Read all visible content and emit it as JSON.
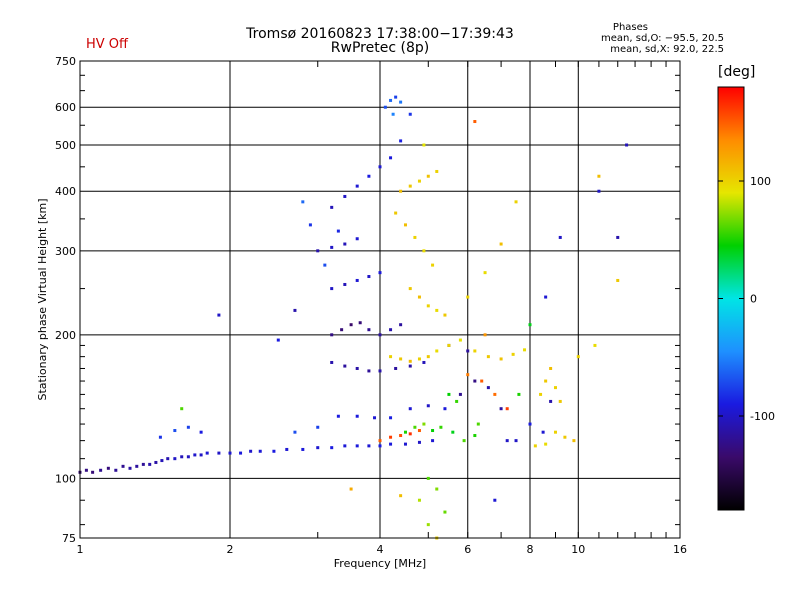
{
  "header": {
    "title_line1": "Tromsø 20160823 17:38:00−17:39:43",
    "title_line2": "RwPretec (8p)",
    "status": "HV Off",
    "status_color": "#cc0000"
  },
  "stats": {
    "heading": "Phases",
    "o_line": "mean, sd,O: −95.5, 20.5",
    "x_line": "mean, sd,X:  92.0, 22.5"
  },
  "chart_data": {
    "type": "scatter",
    "xlabel": "Frequency [MHz]",
    "ylabel": "Stationary phase Virtual Height [km]",
    "x_scale": "log",
    "y_scale": "log",
    "xlim": [
      1,
      16
    ],
    "ylim": [
      75,
      750
    ],
    "xticks": [
      1,
      2,
      4,
      6,
      8,
      10,
      16
    ],
    "yticks": [
      75,
      100,
      200,
      300,
      400,
      500,
      600,
      750
    ],
    "grid": true,
    "colorbar": {
      "label": "[deg]",
      "ticks": [
        100,
        0,
        -100
      ],
      "range": [
        -180,
        180
      ],
      "colormap": [
        "#000000",
        "#3a0a6a",
        "#1a1ae0",
        "#1e90ff",
        "#00e5e5",
        "#00d000",
        "#e6e600",
        "#ff8c00",
        "#ff0000"
      ]
    },
    "series": [
      {
        "mode": "O",
        "points": [
          [
            1.0,
            103,
            -130
          ],
          [
            1.03,
            104,
            -125
          ],
          [
            1.06,
            103,
            -130
          ],
          [
            1.1,
            104,
            -120
          ],
          [
            1.14,
            105,
            -128
          ],
          [
            1.18,
            104,
            -118
          ],
          [
            1.22,
            106,
            -120
          ],
          [
            1.26,
            105,
            -112
          ],
          [
            1.3,
            106,
            -115
          ],
          [
            1.34,
            107,
            -118
          ],
          [
            1.38,
            107,
            -110
          ],
          [
            1.42,
            108,
            -112
          ],
          [
            1.46,
            109,
            -105
          ],
          [
            1.5,
            110,
            -108
          ],
          [
            1.55,
            110,
            -100
          ],
          [
            1.6,
            111,
            -105
          ],
          [
            1.65,
            111,
            -102
          ],
          [
            1.7,
            112,
            -98
          ],
          [
            1.75,
            112,
            -100
          ],
          [
            1.8,
            113,
            -95
          ],
          [
            1.9,
            113,
            -100
          ],
          [
            2.0,
            113,
            -96
          ],
          [
            2.1,
            113,
            -92
          ],
          [
            2.2,
            114,
            -98
          ],
          [
            2.3,
            114,
            -94
          ],
          [
            2.45,
            114,
            -90
          ],
          [
            2.6,
            115,
            -95
          ],
          [
            2.8,
            115,
            -92
          ],
          [
            3.0,
            116,
            -96
          ],
          [
            3.2,
            116,
            -90
          ],
          [
            3.4,
            117,
            -94
          ],
          [
            3.6,
            117,
            -92
          ],
          [
            3.8,
            117,
            -95
          ],
          [
            4.0,
            117,
            -90
          ],
          [
            4.2,
            118,
            -92
          ],
          [
            4.5,
            118,
            -96
          ],
          [
            4.8,
            119,
            -100
          ],
          [
            5.1,
            120,
            -95
          ],
          [
            1.45,
            122,
            -80
          ],
          [
            1.55,
            126,
            -70
          ],
          [
            1.65,
            128,
            -75
          ],
          [
            1.75,
            125,
            -90
          ],
          [
            2.7,
            125,
            -70
          ],
          [
            3.0,
            128,
            -75
          ],
          [
            3.3,
            135,
            -90
          ],
          [
            3.6,
            135,
            -92
          ],
          [
            3.9,
            134,
            -95
          ],
          [
            4.2,
            134,
            -88
          ],
          [
            4.6,
            140,
            -95
          ],
          [
            5.0,
            142,
            -100
          ],
          [
            5.4,
            140,
            -92
          ],
          [
            3.2,
            175,
            -110
          ],
          [
            3.4,
            172,
            -115
          ],
          [
            3.6,
            170,
            -112
          ],
          [
            3.8,
            168,
            -118
          ],
          [
            4.0,
            168,
            -110
          ],
          [
            4.3,
            170,
            -115
          ],
          [
            4.6,
            172,
            -112
          ],
          [
            4.9,
            175,
            -105
          ],
          [
            3.2,
            200,
            -125
          ],
          [
            3.35,
            205,
            -130
          ],
          [
            3.5,
            210,
            -135
          ],
          [
            3.65,
            212,
            -130
          ],
          [
            3.8,
            205,
            -120
          ],
          [
            4.0,
            200,
            -115
          ],
          [
            4.2,
            205,
            -110
          ],
          [
            4.4,
            210,
            -115
          ],
          [
            3.2,
            250,
            -100
          ],
          [
            3.4,
            255,
            -105
          ],
          [
            3.6,
            260,
            -95
          ],
          [
            3.8,
            265,
            -100
          ],
          [
            4.0,
            270,
            -92
          ],
          [
            3.0,
            300,
            -110
          ],
          [
            3.2,
            305,
            -100
          ],
          [
            3.4,
            310,
            -105
          ],
          [
            3.6,
            318,
            -95
          ],
          [
            3.2,
            370,
            -105
          ],
          [
            3.4,
            390,
            -100
          ],
          [
            3.6,
            410,
            -95
          ],
          [
            3.8,
            430,
            -90
          ],
          [
            4.0,
            450,
            -95
          ],
          [
            4.2,
            470,
            -92
          ],
          [
            4.4,
            510,
            -88
          ],
          [
            4.1,
            600,
            -70
          ],
          [
            4.2,
            620,
            -60
          ],
          [
            4.3,
            630,
            -75
          ],
          [
            4.4,
            615,
            -55
          ],
          [
            4.25,
            580,
            -50
          ],
          [
            2.8,
            380,
            -60
          ],
          [
            2.9,
            340,
            -80
          ],
          [
            3.1,
            280,
            -70
          ],
          [
            5.5,
            190,
            -110
          ],
          [
            6.0,
            185,
            -115
          ],
          [
            5.8,
            150,
            -120
          ],
          [
            6.2,
            160,
            -125
          ],
          [
            6.6,
            155,
            -110
          ],
          [
            7.0,
            140,
            -115
          ],
          [
            7.5,
            120,
            -100
          ],
          [
            8.0,
            130,
            -90
          ],
          [
            8.5,
            125,
            -95
          ],
          [
            8.8,
            145,
            -110
          ],
          [
            9.2,
            320,
            -100
          ],
          [
            8.6,
            240,
            -95
          ],
          [
            7.2,
            120,
            -100
          ],
          [
            6.8,
            90,
            -95
          ],
          [
            11.0,
            400,
            -100
          ],
          [
            12.0,
            320,
            -110
          ],
          [
            12.5,
            500,
            -105
          ],
          [
            1.9,
            220,
            -100
          ],
          [
            2.5,
            195,
            -90
          ],
          [
            2.7,
            225,
            -110
          ],
          [
            3.3,
            330,
            -85
          ],
          [
            4.6,
            580,
            -80
          ]
        ]
      },
      {
        "mode": "X",
        "points": [
          [
            4.4,
            400,
            110
          ],
          [
            4.6,
            410,
            105
          ],
          [
            4.8,
            420,
            100
          ],
          [
            5.0,
            430,
            108
          ],
          [
            5.2,
            440,
            100
          ],
          [
            4.3,
            360,
            105
          ],
          [
            4.5,
            340,
            110
          ],
          [
            4.7,
            320,
            100
          ],
          [
            4.9,
            300,
            95
          ],
          [
            5.1,
            280,
            100
          ],
          [
            4.6,
            250,
            105
          ],
          [
            4.8,
            240,
            110
          ],
          [
            5.0,
            230,
            100
          ],
          [
            5.2,
            225,
            95
          ],
          [
            5.4,
            220,
            105
          ],
          [
            4.2,
            180,
            100
          ],
          [
            4.4,
            178,
            105
          ],
          [
            4.6,
            176,
            110
          ],
          [
            4.8,
            178,
            100
          ],
          [
            5.0,
            180,
            105
          ],
          [
            5.2,
            185,
            95
          ],
          [
            5.5,
            190,
            100
          ],
          [
            5.8,
            195,
            92
          ],
          [
            6.2,
            185,
            100
          ],
          [
            6.6,
            180,
            105
          ],
          [
            7.0,
            178,
            108
          ],
          [
            7.4,
            182,
            100
          ],
          [
            7.8,
            186,
            95
          ],
          [
            8.4,
            150,
            100
          ],
          [
            8.6,
            160,
            105
          ],
          [
            8.8,
            170,
            110
          ],
          [
            9.0,
            155,
            100
          ],
          [
            9.2,
            145,
            105
          ],
          [
            9.0,
            125,
            100
          ],
          [
            9.4,
            122,
            105
          ],
          [
            9.8,
            120,
            110
          ],
          [
            8.6,
            118,
            95
          ],
          [
            8.2,
            117,
            100
          ],
          [
            4.5,
            125,
            50
          ],
          [
            4.7,
            128,
            60
          ],
          [
            4.9,
            130,
            70
          ],
          [
            5.1,
            126,
            45
          ],
          [
            5.3,
            128,
            55
          ],
          [
            5.6,
            125,
            40
          ],
          [
            5.9,
            120,
            60
          ],
          [
            6.2,
            123,
            50
          ],
          [
            4.0,
            120,
            150
          ],
          [
            4.2,
            122,
            160
          ],
          [
            4.4,
            123,
            155
          ],
          [
            4.6,
            124,
            165
          ],
          [
            4.8,
            126,
            150
          ],
          [
            6.0,
            165,
            140
          ],
          [
            6.4,
            160,
            150
          ],
          [
            6.8,
            150,
            145
          ],
          [
            7.2,
            140,
            160
          ],
          [
            5.0,
            100,
            60
          ],
          [
            5.2,
            95,
            70
          ],
          [
            4.8,
            90,
            80
          ],
          [
            5.4,
            85,
            65
          ],
          [
            5.0,
            80,
            75
          ],
          [
            5.5,
            150,
            45
          ],
          [
            5.7,
            145,
            55
          ],
          [
            6.3,
            130,
            60
          ],
          [
            7.6,
            150,
            50
          ],
          [
            8.0,
            210,
            40
          ],
          [
            3.5,
            95,
            120
          ],
          [
            4.4,
            92,
            110
          ],
          [
            5.2,
            75,
            100
          ],
          [
            6.0,
            240,
            100
          ],
          [
            6.5,
            270,
            95
          ],
          [
            11.0,
            430,
            110
          ],
          [
            12.0,
            260,
            105
          ],
          [
            10.8,
            190,
            95
          ],
          [
            10.0,
            180,
            100
          ],
          [
            6.5,
            200,
            130
          ],
          [
            7.0,
            310,
            110
          ],
          [
            7.5,
            380,
            100
          ],
          [
            6.2,
            560,
            150
          ],
          [
            1.6,
            140,
            60
          ],
          [
            4.9,
            500,
            90
          ]
        ]
      }
    ]
  }
}
